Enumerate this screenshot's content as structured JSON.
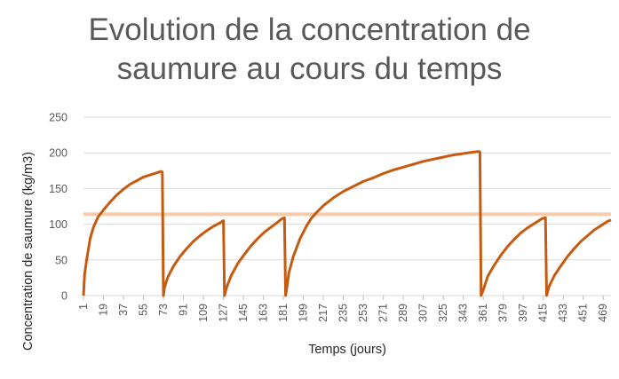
{
  "chart_data": {
    "type": "line",
    "title_lines": [
      "Evolution de la concentration de",
      "saumure au cours du temps"
    ],
    "xlabel": "Temps (jours)",
    "ylabel": "Concentration de saumure (kg/m3)",
    "ylim": [
      0,
      250
    ],
    "yticks": [
      0,
      50,
      100,
      150,
      200,
      250
    ],
    "xlim": [
      1,
      476
    ],
    "xticks": [
      1,
      19,
      37,
      55,
      73,
      91,
      109,
      127,
      145,
      163,
      181,
      199,
      217,
      235,
      253,
      271,
      289,
      307,
      325,
      343,
      361,
      379,
      397,
      415,
      433,
      451,
      469
    ],
    "grid": true,
    "legend": "none",
    "threshold_value": 114,
    "threshold_color": "#F8CBAD",
    "series": [
      {
        "color": "#C55A11",
        "points": [
          [
            1,
            0
          ],
          [
            2,
            30
          ],
          [
            4,
            52
          ],
          [
            7,
            80
          ],
          [
            10,
            96
          ],
          [
            14,
            110
          ],
          [
            19,
            120
          ],
          [
            25,
            131
          ],
          [
            31,
            141
          ],
          [
            37,
            149
          ],
          [
            43,
            156
          ],
          [
            49,
            161
          ],
          [
            55,
            166
          ],
          [
            61,
            169
          ],
          [
            67,
            172
          ],
          [
            71,
            174
          ],
          [
            72,
            173
          ],
          [
            73,
            0
          ],
          [
            74,
            12
          ],
          [
            77,
            26
          ],
          [
            82,
            41
          ],
          [
            88,
            55
          ],
          [
            94,
            66
          ],
          [
            100,
            76
          ],
          [
            106,
            84
          ],
          [
            112,
            91
          ],
          [
            118,
            97
          ],
          [
            124,
            102
          ],
          [
            126,
            104
          ],
          [
            127,
            105
          ],
          [
            128,
            0
          ],
          [
            130,
            12
          ],
          [
            134,
            28
          ],
          [
            140,
            45
          ],
          [
            146,
            58
          ],
          [
            152,
            70
          ],
          [
            158,
            80
          ],
          [
            164,
            89
          ],
          [
            170,
            96
          ],
          [
            176,
            103
          ],
          [
            180,
            108
          ],
          [
            182,
            109
          ],
          [
            183,
            0
          ],
          [
            184,
            10
          ],
          [
            186,
            32
          ],
          [
            190,
            55
          ],
          [
            196,
            80
          ],
          [
            202,
            98
          ],
          [
            206,
            108
          ],
          [
            210,
            115
          ],
          [
            217,
            126
          ],
          [
            226,
            137
          ],
          [
            235,
            146
          ],
          [
            244,
            153
          ],
          [
            253,
            160
          ],
          [
            262,
            165
          ],
          [
            271,
            171
          ],
          [
            280,
            176
          ],
          [
            289,
            180
          ],
          [
            298,
            184
          ],
          [
            307,
            188
          ],
          [
            316,
            191
          ],
          [
            325,
            194
          ],
          [
            334,
            197
          ],
          [
            343,
            199
          ],
          [
            352,
            201
          ],
          [
            357,
            202
          ],
          [
            358,
            201
          ],
          [
            359,
            0
          ],
          [
            361,
            8
          ],
          [
            365,
            27
          ],
          [
            371,
            43
          ],
          [
            377,
            57
          ],
          [
            383,
            69
          ],
          [
            389,
            79
          ],
          [
            395,
            88
          ],
          [
            401,
            95
          ],
          [
            407,
            101
          ],
          [
            412,
            106
          ],
          [
            414,
            108
          ],
          [
            417,
            109
          ],
          [
            418,
            0
          ],
          [
            420,
            12
          ],
          [
            425,
            28
          ],
          [
            431,
            42
          ],
          [
            437,
            55
          ],
          [
            443,
            66
          ],
          [
            449,
            76
          ],
          [
            455,
            84
          ],
          [
            461,
            92
          ],
          [
            467,
            98
          ],
          [
            473,
            104
          ],
          [
            476,
            106
          ]
        ]
      }
    ]
  }
}
